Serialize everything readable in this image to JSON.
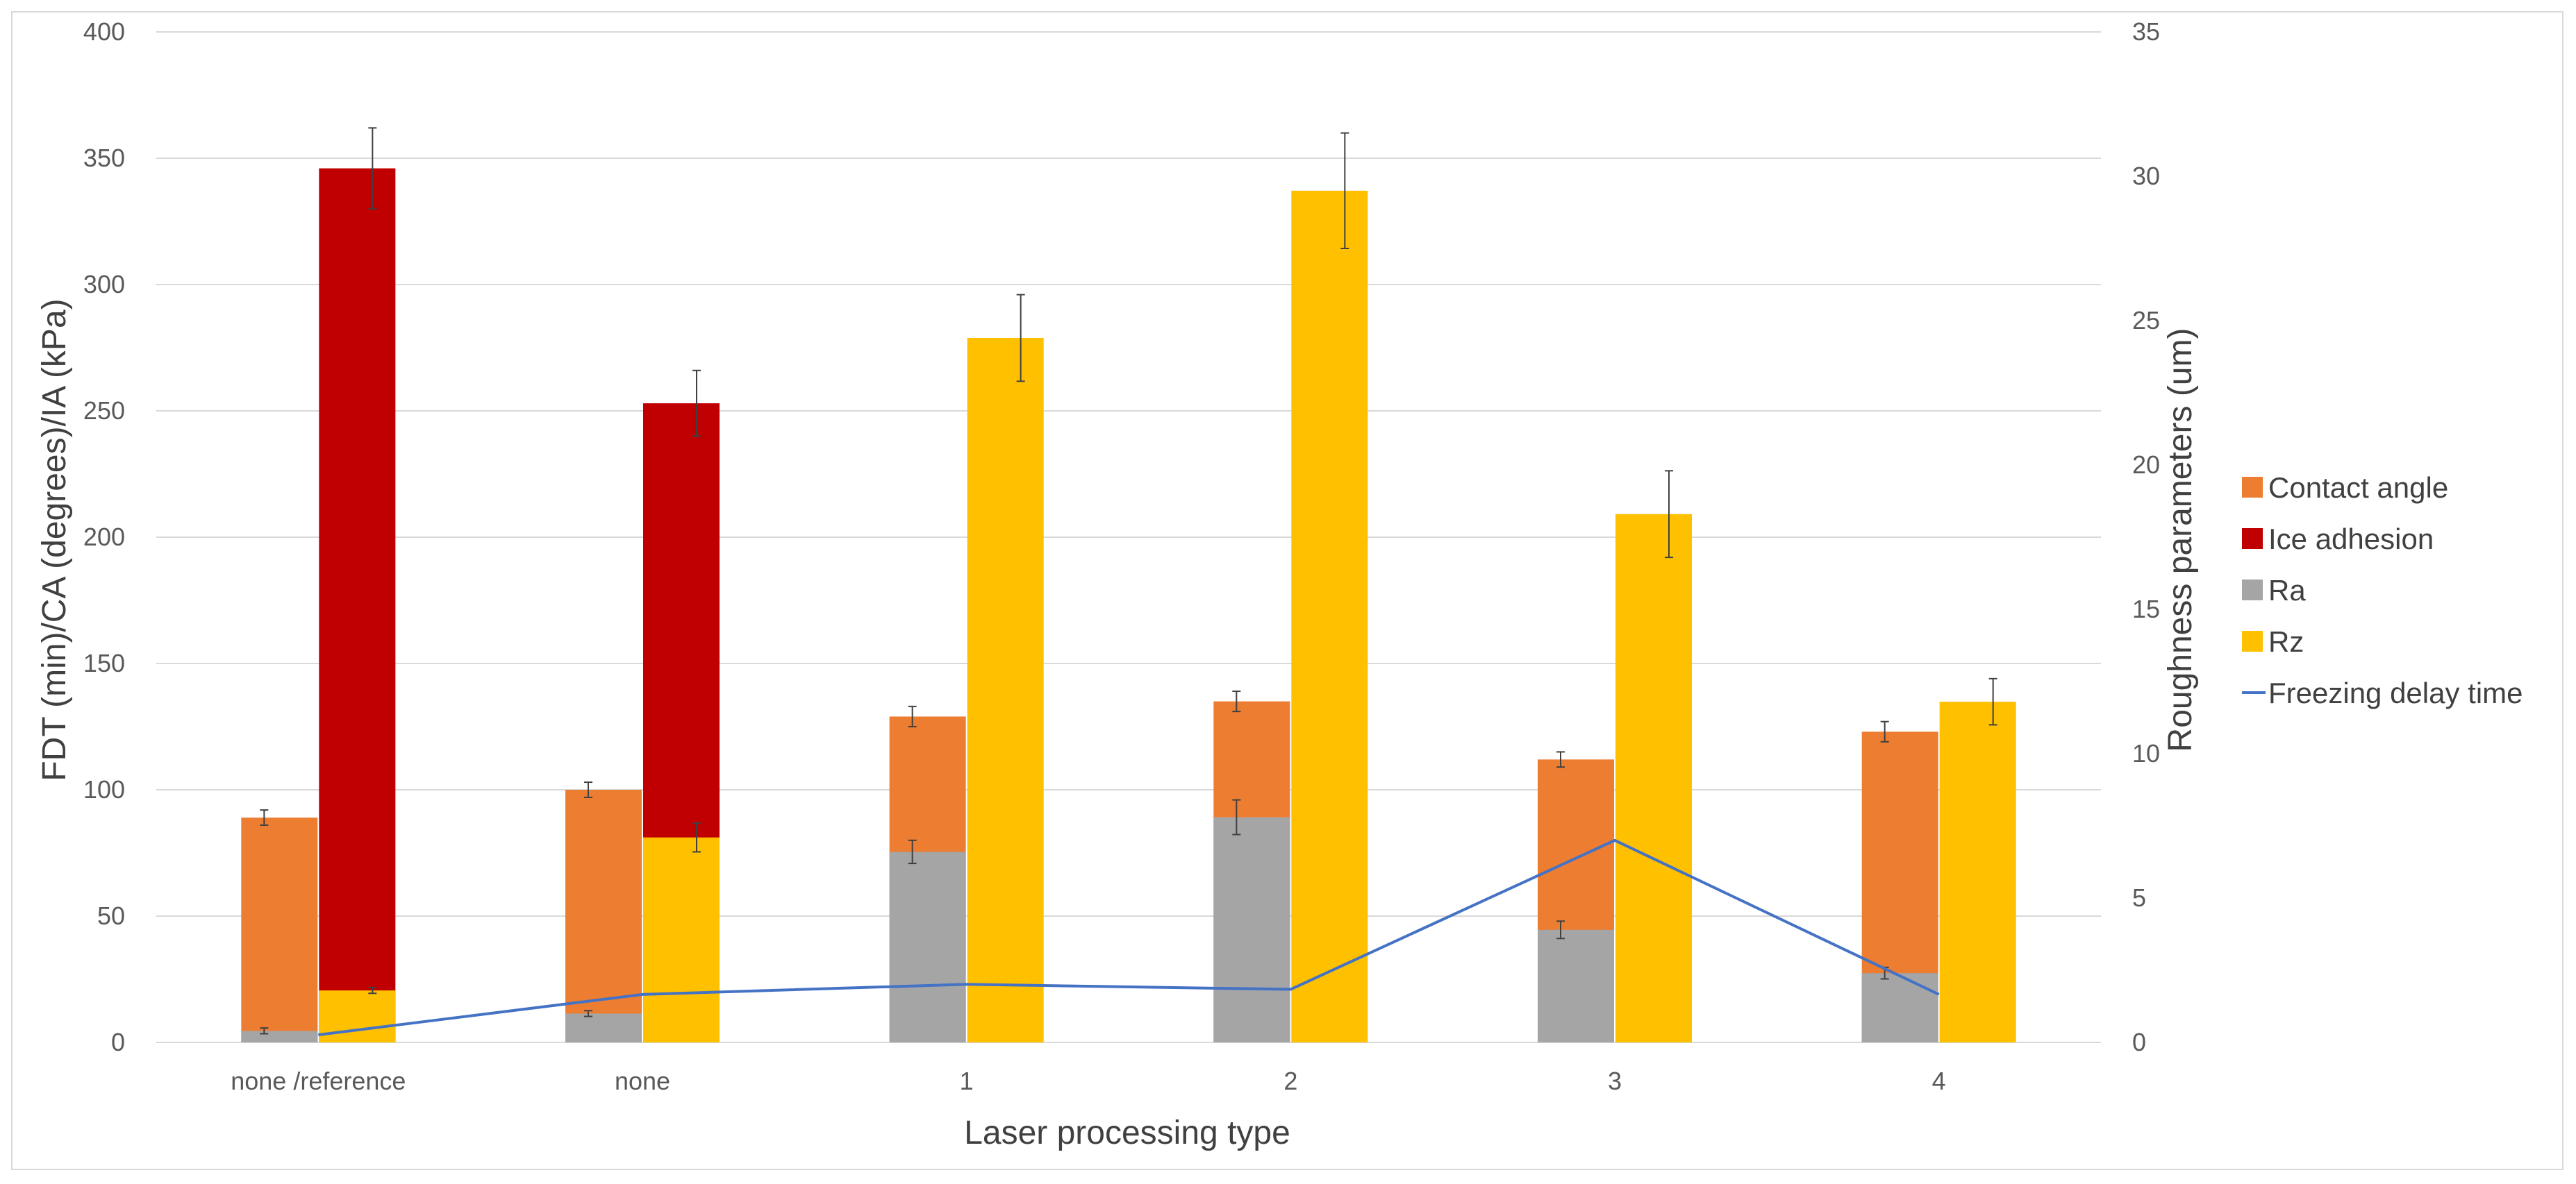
{
  "chart_data": {
    "type": "bar",
    "title": "",
    "xlabel": "Laser processing type",
    "ylabel_left": "FDT (min)/CA (degrees)/IA (kPa)",
    "ylabel_right": "Roughness parameters (um)",
    "left_ylim": [
      0,
      400
    ],
    "left_ticks": [
      0,
      50,
      100,
      150,
      200,
      250,
      300,
      350,
      400
    ],
    "right_ylim": [
      0,
      35
    ],
    "right_ticks": [
      0,
      5,
      10,
      15,
      20,
      25,
      30,
      35
    ],
    "grid": true,
    "categories": [
      "none /reference",
      "none",
      "1",
      "2",
      "3",
      "4"
    ],
    "series": [
      {
        "name": "Ra",
        "axis": "right",
        "stack": "left-bar",
        "color": "#a5a5a5",
        "values": [
          0.4,
          1.0,
          6.6,
          7.8,
          3.9,
          2.4
        ],
        "errors": [
          0.1,
          0.1,
          0.4,
          0.6,
          0.3,
          0.2
        ]
      },
      {
        "name": "Contact angle",
        "axis": "left",
        "stack": "left-bar",
        "color": "#ed7d31",
        "values": [
          89,
          100,
          129,
          135,
          112,
          123
        ],
        "errors": [
          3,
          3,
          4,
          4,
          3,
          4
        ]
      },
      {
        "name": "Rz",
        "axis": "right",
        "stack": "right-bar",
        "color": "#ffc000",
        "values": [
          1.8,
          7.1,
          24.4,
          29.5,
          18.3,
          11.8
        ],
        "errors": [
          0.1,
          0.5,
          1.5,
          2.0,
          1.5,
          0.8
        ]
      },
      {
        "name": "Ice adhesion",
        "axis": "left",
        "stack": "right-bar",
        "color": "#c00000",
        "values": [
          346,
          253,
          null,
          null,
          null,
          null
        ],
        "errors": [
          16,
          13,
          null,
          null,
          null,
          null
        ]
      },
      {
        "name": "Freezing delay time",
        "axis": "left",
        "type": "line",
        "color": "#4472c4",
        "values": [
          3,
          19,
          23,
          21,
          80,
          19
        ]
      }
    ],
    "legend": {
      "position": "right",
      "entries": [
        {
          "name": "Contact angle",
          "color": "#ed7d31",
          "marker": "box"
        },
        {
          "name": "Ice adhesion",
          "color": "#c00000",
          "marker": "box"
        },
        {
          "name": "Ra",
          "color": "#a5a5a5",
          "marker": "box"
        },
        {
          "name": "Rz",
          "color": "#ffc000",
          "marker": "box"
        },
        {
          "name": "Freezing delay time",
          "color": "#4472c4",
          "marker": "line"
        }
      ]
    }
  }
}
